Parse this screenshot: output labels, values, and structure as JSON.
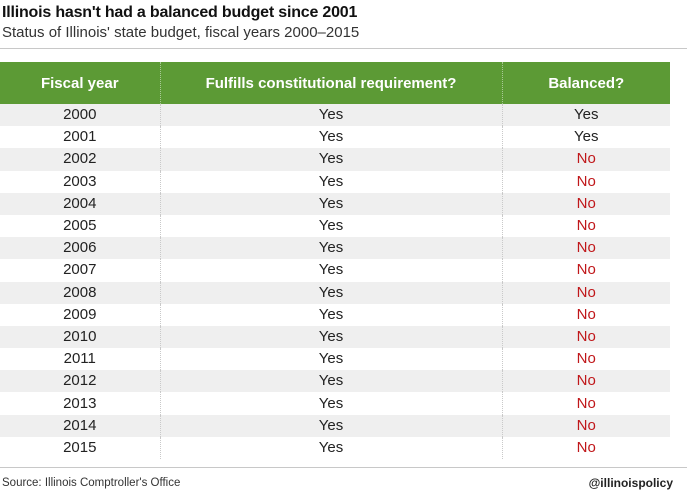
{
  "chart_data": {
    "type": "table",
    "title": "Illinois hasn't had a balanced budget since 2001",
    "subtitle": "Status of Illinois' state budget, fiscal years 2000–2015",
    "columns": [
      "Fiscal year",
      "Fulfills constitutional requirement?",
      "Balanced?"
    ],
    "rows": [
      [
        "2000",
        "Yes",
        "Yes"
      ],
      [
        "2001",
        "Yes",
        "Yes"
      ],
      [
        "2002",
        "Yes",
        "No"
      ],
      [
        "2003",
        "Yes",
        "No"
      ],
      [
        "2004",
        "Yes",
        "No"
      ],
      [
        "2005",
        "Yes",
        "No"
      ],
      [
        "2006",
        "Yes",
        "No"
      ],
      [
        "2007",
        "Yes",
        "No"
      ],
      [
        "2008",
        "Yes",
        "No"
      ],
      [
        "2009",
        "Yes",
        "No"
      ],
      [
        "2010",
        "Yes",
        "No"
      ],
      [
        "2011",
        "Yes",
        "No"
      ],
      [
        "2012",
        "Yes",
        "No"
      ],
      [
        "2013",
        "Yes",
        "No"
      ],
      [
        "2014",
        "Yes",
        "No"
      ],
      [
        "2015",
        "Yes",
        "No"
      ]
    ]
  },
  "footer": {
    "source": "Source: Illinois Comptroller's Office",
    "handle": "@illinoispolicy"
  },
  "colors": {
    "header_bg": "#5c9a35",
    "no_text": "#c0171a",
    "stripe": "#efefef"
  }
}
